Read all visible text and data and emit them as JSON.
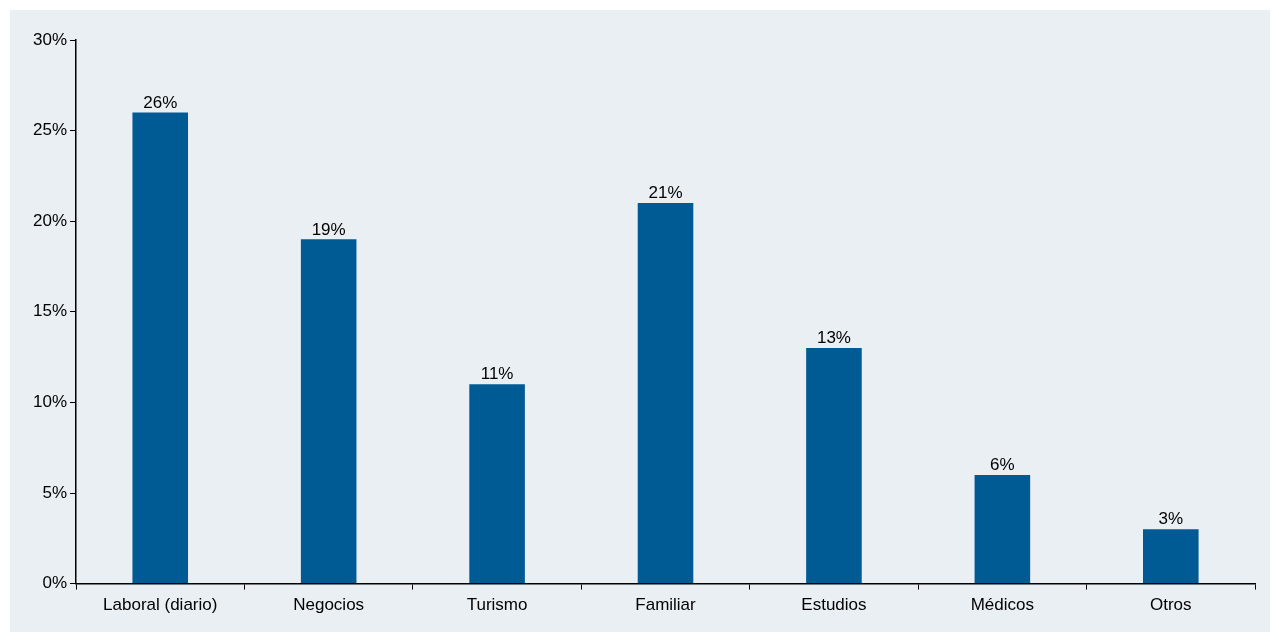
{
  "chart_data": {
    "type": "bar",
    "categories": [
      "Laboral (diario)",
      "Negocios",
      "Turismo",
      "Familiar",
      "Estudios",
      "Médicos",
      "Otros"
    ],
    "values": [
      26,
      19,
      11,
      21,
      13,
      6,
      3
    ],
    "value_labels": [
      "26%",
      "19%",
      "11%",
      "21%",
      "13%",
      "6%",
      "3%"
    ],
    "color": "#005a94",
    "ylim": [
      0,
      30
    ],
    "yticks": [
      {
        "value": 0,
        "label": "0%"
      },
      {
        "value": 5,
        "label": "5%"
      },
      {
        "value": 10,
        "label": "10%"
      },
      {
        "value": 15,
        "label": "15%"
      },
      {
        "value": 20,
        "label": "20%"
      },
      {
        "value": 25,
        "label": "25%"
      },
      {
        "value": 30,
        "label": "30%"
      }
    ],
    "grid": false,
    "legend": false
  }
}
